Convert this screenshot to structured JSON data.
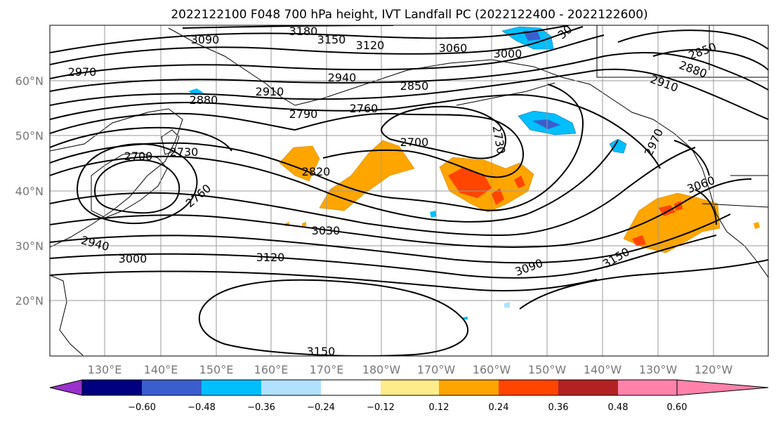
{
  "title": "2022122100 F048 700 hPa height, IVT Landfall PC (2022122400 - 2022122600)",
  "lat_labels": [
    "60°N",
    "50°N",
    "40°N",
    "30°N",
    "20°N"
  ],
  "lon_labels": [
    "130°E",
    "140°E",
    "150°E",
    "160°E",
    "170°E",
    "180°W",
    "170°W",
    "160°W",
    "150°W",
    "140°W",
    "130°W",
    "120°W"
  ],
  "contour_labels": [
    "3180",
    "3150",
    "3120",
    "3060",
    "3000",
    "3090",
    "2970",
    "2910",
    "2940",
    "2850",
    "2880",
    "2790",
    "2760",
    "2700",
    "2730",
    "2700",
    "2820",
    "2730",
    "2760",
    "2970",
    "3060",
    "3030",
    "2940",
    "3000",
    "3120",
    "3090",
    "3150",
    "3150",
    "2850",
    "2880",
    "2910",
    "30"
  ],
  "colorbar": {
    "ticks": [
      "−0.60",
      "−0.48",
      "−0.36",
      "−0.24",
      "−0.12",
      "0.12",
      "0.24",
      "0.36",
      "0.48",
      "0.60"
    ],
    "colors": [
      "#9932cc",
      "#000080",
      "#3a5fcd",
      "#00bfff",
      "#b0e2ff",
      "#ffffff",
      "#ffec8b",
      "#ffa500",
      "#ff4500",
      "#b22222",
      "#ff82ab"
    ]
  }
}
